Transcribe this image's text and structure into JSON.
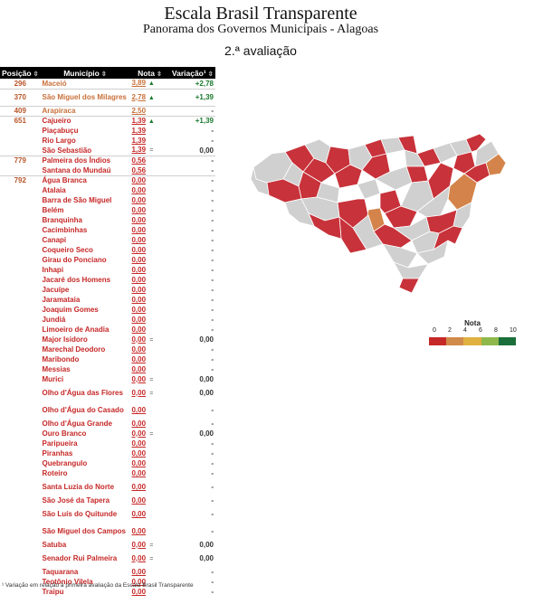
{
  "header": {
    "title": "Escala Brasil Transparente",
    "subtitle": "Panorama dos Governos Municipais - Alagoas",
    "evaluation": "2.ª avaliação"
  },
  "table": {
    "columns": [
      "Posição",
      "Município",
      "Nota",
      "Variação¹"
    ],
    "sort_icon": "sort-icon",
    "rows": [
      {
        "pos": "296",
        "name": "Maceió",
        "nota": "3,89",
        "arrow": "▲",
        "var": "+2,78",
        "c": "o"
      },
      {
        "pos": "370",
        "name": "São Miguel dos Milagres",
        "nota": "2,78",
        "arrow": "▲",
        "var": "+1,39",
        "c": "o"
      },
      {
        "pos": "409",
        "name": "Arapiraca",
        "nota": "2,50",
        "arrow": "",
        "var": "-",
        "c": "o"
      },
      {
        "pos": "651",
        "name": "Cajueiro",
        "nota": "1,39",
        "arrow": "▲",
        "var": "+1,39",
        "c": "r"
      },
      {
        "pos": "",
        "name": "Piaçabuçu",
        "nota": "1,39",
        "arrow": "",
        "var": "-",
        "c": "r"
      },
      {
        "pos": "",
        "name": "Rio Largo",
        "nota": "1,39",
        "arrow": "",
        "var": "-",
        "c": "r"
      },
      {
        "pos": "",
        "name": "São Sebastião",
        "nota": "1,39",
        "arrow": "=",
        "var": "0,00",
        "c": "r"
      },
      {
        "pos": "779",
        "name": "Palmeira dos Índios",
        "nota": "0,56",
        "arrow": "",
        "var": "-",
        "c": "r"
      },
      {
        "pos": "",
        "name": "Santana do Mundaú",
        "nota": "0,56",
        "arrow": "",
        "var": "-",
        "c": "r"
      },
      {
        "pos": "792",
        "name": "Água Branca",
        "nota": "0,00",
        "arrow": "",
        "var": "-",
        "c": "r"
      },
      {
        "pos": "",
        "name": "Atalaia",
        "nota": "0,00",
        "arrow": "",
        "var": "-",
        "c": "r"
      },
      {
        "pos": "",
        "name": "Barra de São Miguel",
        "nota": "0,00",
        "arrow": "",
        "var": "-",
        "c": "r"
      },
      {
        "pos": "",
        "name": "Belém",
        "nota": "0,00",
        "arrow": "",
        "var": "-",
        "c": "r"
      },
      {
        "pos": "",
        "name": "Branquinha",
        "nota": "0,00",
        "arrow": "",
        "var": "-",
        "c": "r"
      },
      {
        "pos": "",
        "name": "Cacimbinhas",
        "nota": "0,00",
        "arrow": "",
        "var": "-",
        "c": "r"
      },
      {
        "pos": "",
        "name": "Canapi",
        "nota": "0,00",
        "arrow": "",
        "var": "-",
        "c": "r"
      },
      {
        "pos": "",
        "name": "Coqueiro Seco",
        "nota": "0,00",
        "arrow": "",
        "var": "-",
        "c": "r"
      },
      {
        "pos": "",
        "name": "Girau do Ponciano",
        "nota": "0,00",
        "arrow": "",
        "var": "-",
        "c": "r"
      },
      {
        "pos": "",
        "name": "Inhapi",
        "nota": "0,00",
        "arrow": "",
        "var": "-",
        "c": "r"
      },
      {
        "pos": "",
        "name": "Jacaré dos Homens",
        "nota": "0,00",
        "arrow": "",
        "var": "-",
        "c": "r"
      },
      {
        "pos": "",
        "name": "Jacuípe",
        "nota": "0,00",
        "arrow": "",
        "var": "-",
        "c": "r"
      },
      {
        "pos": "",
        "name": "Jaramataia",
        "nota": "0,00",
        "arrow": "",
        "var": "-",
        "c": "r"
      },
      {
        "pos": "",
        "name": "Joaquim Gomes",
        "nota": "0,00",
        "arrow": "",
        "var": "-",
        "c": "r"
      },
      {
        "pos": "",
        "name": "Jundiá",
        "nota": "0,00",
        "arrow": "",
        "var": "-",
        "c": "r"
      },
      {
        "pos": "",
        "name": "Limoeiro de Anadia",
        "nota": "0,00",
        "arrow": "",
        "var": "-",
        "c": "r"
      },
      {
        "pos": "",
        "name": "Major Isidoro",
        "nota": "0,00",
        "arrow": "=",
        "var": "0,00",
        "c": "r"
      },
      {
        "pos": "",
        "name": "Marechal Deodoro",
        "nota": "0,00",
        "arrow": "",
        "var": "-",
        "c": "r"
      },
      {
        "pos": "",
        "name": "Maribondo",
        "nota": "0,00",
        "arrow": "",
        "var": "-",
        "c": "r"
      },
      {
        "pos": "",
        "name": "Messias",
        "nota": "0,00",
        "arrow": "",
        "var": "-",
        "c": "r"
      },
      {
        "pos": "",
        "name": "Murici",
        "nota": "0,00",
        "arrow": "=",
        "var": "0,00",
        "c": "r"
      },
      {
        "pos": "",
        "name": "Olho d'Água das Flores",
        "nota": "0,00",
        "arrow": "=",
        "var": "0,00",
        "c": "r"
      },
      {
        "pos": "",
        "name": "Olho d'Água do Casado",
        "nota": "0,00",
        "arrow": "",
        "var": "-",
        "c": "r"
      },
      {
        "pos": "",
        "name": "Olho d'Água Grande",
        "nota": "0,00",
        "arrow": "",
        "var": "-",
        "c": "r"
      },
      {
        "pos": "",
        "name": "Ouro Branco",
        "nota": "0,00",
        "arrow": "=",
        "var": "0,00",
        "c": "r"
      },
      {
        "pos": "",
        "name": "Paripueira",
        "nota": "0,00",
        "arrow": "",
        "var": "-",
        "c": "r"
      },
      {
        "pos": "",
        "name": "Piranhas",
        "nota": "0,00",
        "arrow": "",
        "var": "-",
        "c": "r"
      },
      {
        "pos": "",
        "name": "Quebrangulo",
        "nota": "0,00",
        "arrow": "",
        "var": "-",
        "c": "r"
      },
      {
        "pos": "",
        "name": "Roteiro",
        "nota": "0,00",
        "arrow": "",
        "var": "-",
        "c": "r"
      },
      {
        "pos": "",
        "name": "Santa Luzia do Norte",
        "nota": "0,00",
        "arrow": "",
        "var": "-",
        "c": "r"
      },
      {
        "pos": "",
        "name": "São José da Tapera",
        "nota": "0,00",
        "arrow": "",
        "var": "-",
        "c": "r"
      },
      {
        "pos": "",
        "name": "São Luís do Quitunde",
        "nota": "0,00",
        "arrow": "",
        "var": "-",
        "c": "r"
      },
      {
        "pos": "",
        "name": "São Miguel dos Campos",
        "nota": "0,00",
        "arrow": "",
        "var": "-",
        "c": "r"
      },
      {
        "pos": "",
        "name": "Satuba",
        "nota": "0,00",
        "arrow": "=",
        "var": "0,00",
        "c": "r"
      },
      {
        "pos": "",
        "name": "Senador Rui Palmeira",
        "nota": "0,00",
        "arrow": "=",
        "var": "0,00",
        "c": "r"
      },
      {
        "pos": "",
        "name": "Taquarana",
        "nota": "0,00",
        "arrow": "",
        "var": "-",
        "c": "r"
      },
      {
        "pos": "",
        "name": "Teotônio Vilela",
        "nota": "0,00",
        "arrow": "",
        "var": "-",
        "c": "r"
      },
      {
        "pos": "",
        "name": "Traipu",
        "nota": "0,00",
        "arrow": "",
        "var": "-",
        "c": "r"
      }
    ]
  },
  "legend": {
    "title": "Nota",
    "ticks": [
      "0",
      "2",
      "4",
      "6",
      "8",
      "10"
    ],
    "colors": [
      "#c62828",
      "#d08a4a",
      "#e0b040",
      "#8fb84a",
      "#1a6e3a"
    ]
  },
  "map": {
    "fill_none": "#d0d0d0",
    "fill_low": "#c8323a",
    "fill_mid": "#d4844a",
    "stroke": "#ffffff"
  },
  "footnote": "¹ Variação em relação à primeira avaliação da Escala Brasil Transparente"
}
